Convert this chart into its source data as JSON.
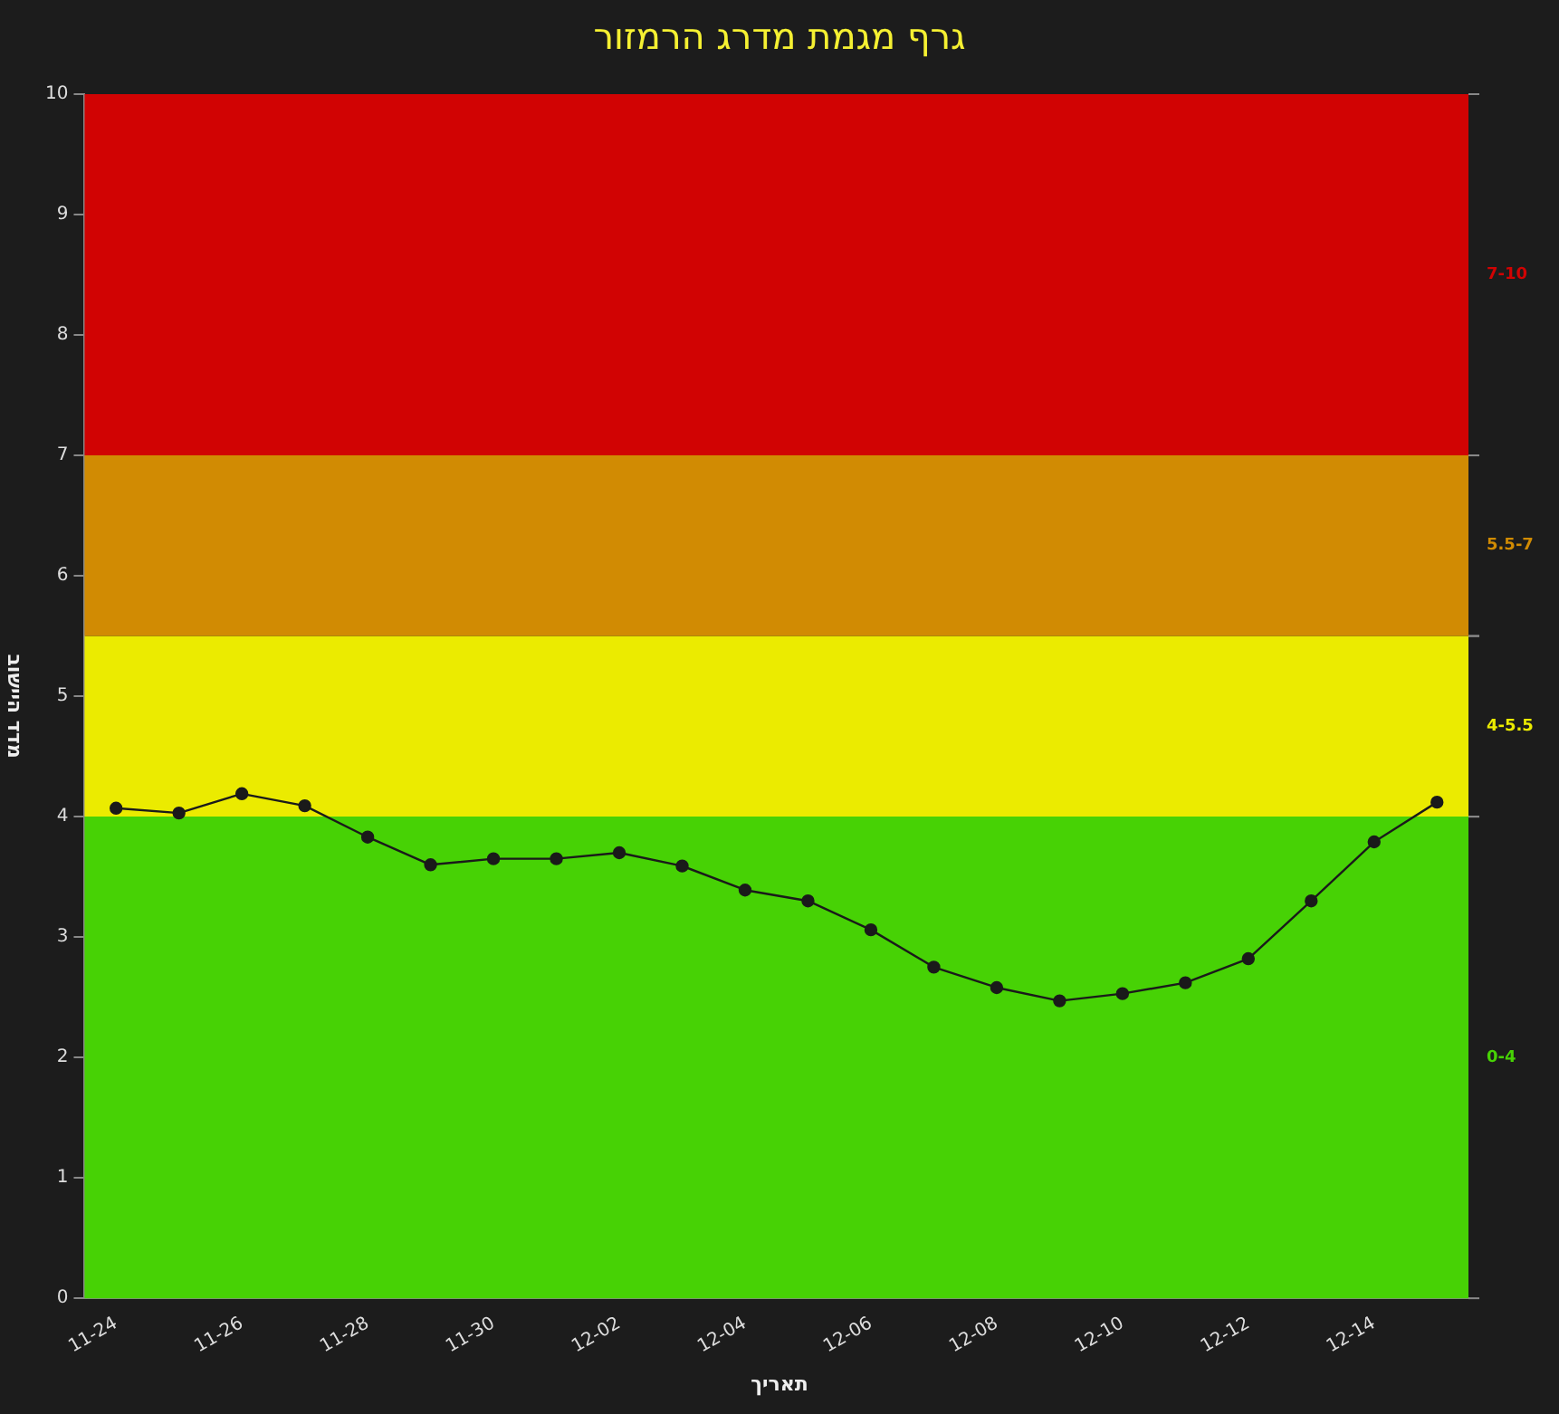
{
  "chart_data": {
    "type": "line",
    "title": "גרף מגמת מדרג הרמזור",
    "xlabel": "תאריך",
    "ylabel": "מדד היישוב",
    "categories": [
      "11-24",
      null,
      "11-26",
      null,
      "11-28",
      null,
      "11-30",
      null,
      "12-02",
      null,
      "12-04",
      null,
      "12-06",
      null,
      "12-08",
      null,
      "12-10",
      null,
      "12-12",
      null,
      "12-14",
      null
    ],
    "series": [
      {
        "color": "#1a1a1a",
        "values": [
          4.07,
          4.03,
          4.19,
          4.09,
          3.83,
          3.6,
          3.65,
          3.65,
          3.7,
          3.59,
          3.39,
          3.3,
          3.06,
          2.75,
          2.58,
          2.47,
          2.53,
          2.62,
          2.82,
          3.3,
          3.79,
          4.12
        ]
      }
    ],
    "ylim": [
      0,
      10
    ],
    "yticks": [
      0,
      1,
      2,
      3,
      4,
      5,
      6,
      7,
      8,
      9,
      10
    ],
    "bands": [
      {
        "axis": "y",
        "from": 0,
        "to": 4,
        "label": "0-4",
        "color": "#47d205"
      },
      {
        "axis": "y",
        "from": 4,
        "to": 5.5,
        "label": "4-5.5",
        "color": "#ebeb00"
      },
      {
        "axis": "y",
        "from": 5.5,
        "to": 7,
        "label": "5.5-7",
        "color": "#d18b03"
      },
      {
        "axis": "y",
        "from": 7,
        "to": 10,
        "label": "7-10",
        "color": "#d10303"
      }
    ],
    "marker": "circle",
    "line_style": "solid",
    "grid": false,
    "legend": false
  }
}
